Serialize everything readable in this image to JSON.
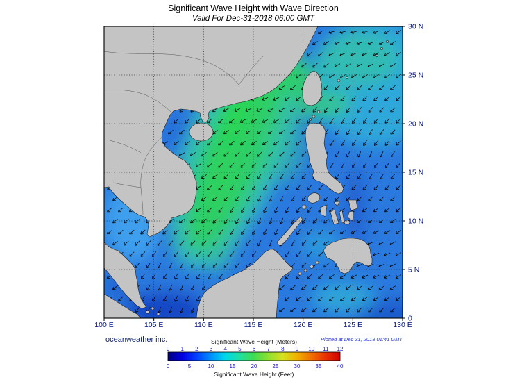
{
  "title": "Significant Wave Height with Wave Direction",
  "subtitle": "Valid For Dec-31-2018 06:00 GMT",
  "credit": "oceanweather inc.",
  "plotted": "Plotted at Dec 31, 2018 01:41 GMT",
  "axes": {
    "x_labels": [
      "100 E",
      "105 E",
      "110 E",
      "115 E",
      "120 E",
      "125 E",
      "130 E"
    ],
    "y_labels": [
      "30 N",
      "25 N",
      "20 N",
      "15 N",
      "10 N",
      "5 N",
      "0"
    ]
  },
  "colorbar": {
    "meters_label": "Significant Wave Height (Meters)",
    "feet_label": "Significant Wave Height (Feet)",
    "meters_ticks": [
      0,
      1,
      2,
      3,
      4,
      5,
      6,
      7,
      8,
      9,
      10,
      11,
      12
    ],
    "feet_ticks": [
      0,
      5,
      10,
      15,
      20,
      25,
      30,
      35,
      40
    ],
    "colors": [
      "#00007f",
      "#0000e0",
      "#0040ff",
      "#0090ff",
      "#00d8e8",
      "#20e0a0",
      "#40dc50",
      "#90e030",
      "#d8e020",
      "#f0b000",
      "#f07000",
      "#e83000",
      "#d00000"
    ]
  },
  "chart_data": {
    "type": "heatmap",
    "field": "significant_wave_height",
    "title": "Significant Wave Height with Wave Direction",
    "valid_time": "Dec-31-2018 06:00 GMT",
    "plotted_time": "Dec 31, 2018 01:41 GMT",
    "region": "South China Sea and Western Pacific",
    "x_axis": {
      "suffix": "E",
      "range": [
        100,
        130
      ],
      "tick_step": 5
    },
    "y_axis": {
      "suffix": "N",
      "range": [
        0,
        30
      ],
      "tick_step": 5
    },
    "units_primary": "meters",
    "units_secondary": "feet",
    "scale": {
      "min_m": 0,
      "max_m": 12,
      "min_ft": 0,
      "max_ft": 40
    },
    "overlay": "wave direction arrows, predominantly pointing southwest (northeast monsoon swell)",
    "samples_m": [
      {
        "lon": 112,
        "lat": 17,
        "hs": 5.5
      },
      {
        "lon": 113,
        "lat": 20,
        "hs": 5.0
      },
      {
        "lon": 111,
        "lat": 13,
        "hs": 5.0
      },
      {
        "lon": 118,
        "lat": 23,
        "hs": 4.5
      },
      {
        "lon": 121,
        "lat": 21,
        "hs": 4.5
      },
      {
        "lon": 126,
        "lat": 26,
        "hs": 3.5
      },
      {
        "lon": 126,
        "lat": 15,
        "hs": 3.0
      },
      {
        "lon": 117,
        "lat": 9,
        "hs": 3.0
      },
      {
        "lon": 122,
        "lat": 5,
        "hs": 2.5
      },
      {
        "lon": 103,
        "lat": 10,
        "hs": 1.5
      },
      {
        "lon": 106,
        "lat": 20,
        "hs": 2.0
      },
      {
        "lon": 124,
        "lat": 7,
        "hs": 2.0
      },
      {
        "lon": 110,
        "lat": 2,
        "hs": 1.0
      }
    ]
  }
}
